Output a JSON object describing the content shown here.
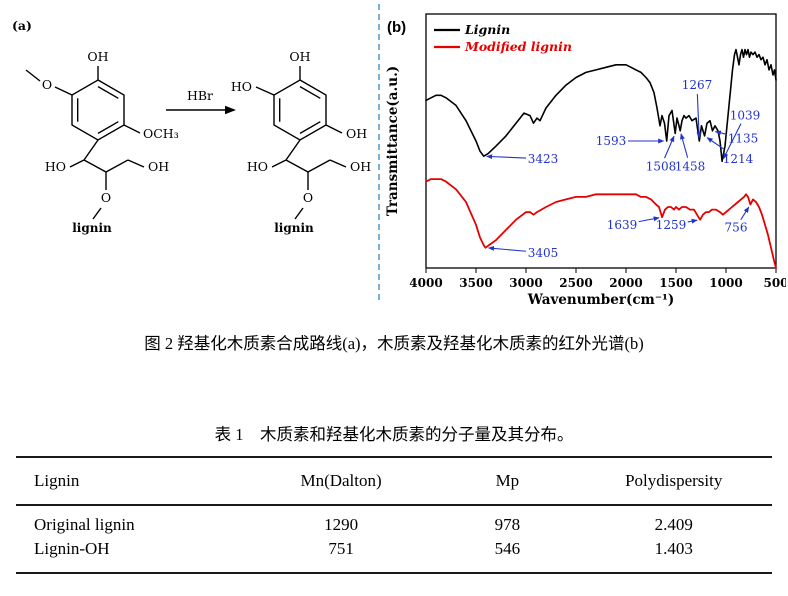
{
  "figure": {
    "panel_a_label": "(a)",
    "panel_b_label": "(b)",
    "reagent": "HBr",
    "scheme": {
      "left": {
        "oh_top": "OH",
        "o_methoxy": "O",
        "och3": "OCH₃",
        "ho_chain": "HO",
        "oh_chain": "OH",
        "o_link": "O",
        "lignin": "lignin"
      },
      "right": {
        "oh_top": "OH",
        "ho_ring": "HO",
        "oh_ring": "OH",
        "ho_chain": "HO",
        "oh_chain": "OH",
        "o_link": "O",
        "lignin": "lignin"
      }
    },
    "caption": "图 2 羟基化木质素合成路线(a)，木质素及羟基化木质素的红外光谱(b)"
  },
  "chart_data": {
    "type": "line",
    "title": "",
    "xlabel": "Wavenumber(cm⁻¹)",
    "ylabel": "Transmittance(a.u.)",
    "xlim": [
      4000,
      500
    ],
    "ylim": [
      0,
      100
    ],
    "x_reversed": true,
    "grid": false,
    "legend_position": "top-left",
    "x_ticks": [
      4000,
      3500,
      3000,
      2500,
      2000,
      1500,
      1000,
      500
    ],
    "annotation_color": "#2233cc",
    "series": [
      {
        "name": "Lignin",
        "color": "#000000",
        "width": 1.6,
        "points": [
          [
            4000,
            66
          ],
          [
            3950,
            67
          ],
          [
            3900,
            68
          ],
          [
            3850,
            68
          ],
          [
            3800,
            67
          ],
          [
            3700,
            64
          ],
          [
            3600,
            58
          ],
          [
            3500,
            50
          ],
          [
            3460,
            46
          ],
          [
            3423,
            44
          ],
          [
            3380,
            45
          ],
          [
            3300,
            48
          ],
          [
            3200,
            52
          ],
          [
            3100,
            57
          ],
          [
            3020,
            61
          ],
          [
            2960,
            60
          ],
          [
            2925,
            57
          ],
          [
            2890,
            59
          ],
          [
            2860,
            58
          ],
          [
            2800,
            63
          ],
          [
            2700,
            68
          ],
          [
            2600,
            72
          ],
          [
            2500,
            75
          ],
          [
            2400,
            77
          ],
          [
            2300,
            78
          ],
          [
            2200,
            79
          ],
          [
            2100,
            80
          ],
          [
            2000,
            80
          ],
          [
            1950,
            79
          ],
          [
            1900,
            78
          ],
          [
            1850,
            77
          ],
          [
            1800,
            75
          ],
          [
            1760,
            73
          ],
          [
            1720,
            69
          ],
          [
            1690,
            63
          ],
          [
            1660,
            56
          ],
          [
            1640,
            60
          ],
          [
            1615,
            57
          ],
          [
            1593,
            50
          ],
          [
            1570,
            60
          ],
          [
            1540,
            62
          ],
          [
            1508,
            53
          ],
          [
            1490,
            59
          ],
          [
            1470,
            56
          ],
          [
            1458,
            54
          ],
          [
            1440,
            58
          ],
          [
            1420,
            60
          ],
          [
            1400,
            59
          ],
          [
            1370,
            60
          ],
          [
            1340,
            58
          ],
          [
            1300,
            59
          ],
          [
            1267,
            50
          ],
          [
            1245,
            56
          ],
          [
            1214,
            52
          ],
          [
            1190,
            57
          ],
          [
            1160,
            58
          ],
          [
            1135,
            54
          ],
          [
            1110,
            56
          ],
          [
            1080,
            54
          ],
          [
            1060,
            50
          ],
          [
            1039,
            42
          ],
          [
            1010,
            48
          ],
          [
            985,
            58
          ],
          [
            960,
            68
          ],
          [
            935,
            78
          ],
          [
            915,
            84
          ],
          [
            900,
            86
          ],
          [
            885,
            83
          ],
          [
            870,
            80
          ],
          [
            855,
            84
          ],
          [
            840,
            86
          ],
          [
            825,
            83
          ],
          [
            810,
            86
          ],
          [
            795,
            84
          ],
          [
            780,
            86
          ],
          [
            765,
            83
          ],
          [
            750,
            85
          ],
          [
            730,
            84
          ],
          [
            710,
            85
          ],
          [
            690,
            83
          ],
          [
            670,
            84
          ],
          [
            650,
            82
          ],
          [
            630,
            83
          ],
          [
            610,
            80
          ],
          [
            590,
            82
          ],
          [
            570,
            78
          ],
          [
            550,
            80
          ],
          [
            530,
            76
          ],
          [
            515,
            78
          ],
          [
            500,
            74
          ]
        ]
      },
      {
        "name": "Modified lignin",
        "color": "#e60000",
        "width": 1.8,
        "points": [
          [
            4000,
            34
          ],
          [
            3950,
            35
          ],
          [
            3900,
            35
          ],
          [
            3850,
            35
          ],
          [
            3800,
            34
          ],
          [
            3700,
            31
          ],
          [
            3600,
            26
          ],
          [
            3500,
            17
          ],
          [
            3460,
            12
          ],
          [
            3423,
            9
          ],
          [
            3405,
            8
          ],
          [
            3370,
            9
          ],
          [
            3300,
            11
          ],
          [
            3200,
            15
          ],
          [
            3100,
            19
          ],
          [
            3000,
            22
          ],
          [
            2960,
            22
          ],
          [
            2925,
            21
          ],
          [
            2890,
            22
          ],
          [
            2800,
            24
          ],
          [
            2700,
            26
          ],
          [
            2600,
            27
          ],
          [
            2500,
            28
          ],
          [
            2400,
            28
          ],
          [
            2300,
            29
          ],
          [
            2200,
            29
          ],
          [
            2100,
            29
          ],
          [
            2000,
            29
          ],
          [
            1900,
            29
          ],
          [
            1850,
            28
          ],
          [
            1800,
            28
          ],
          [
            1750,
            27
          ],
          [
            1700,
            25
          ],
          [
            1670,
            24
          ],
          [
            1639,
            20
          ],
          [
            1610,
            23
          ],
          [
            1580,
            24
          ],
          [
            1550,
            24
          ],
          [
            1520,
            23
          ],
          [
            1500,
            24
          ],
          [
            1470,
            23
          ],
          [
            1440,
            24
          ],
          [
            1400,
            24
          ],
          [
            1360,
            23
          ],
          [
            1320,
            23
          ],
          [
            1290,
            21
          ],
          [
            1259,
            19
          ],
          [
            1230,
            21
          ],
          [
            1200,
            22
          ],
          [
            1170,
            22
          ],
          [
            1140,
            23
          ],
          [
            1100,
            23
          ],
          [
            1060,
            22
          ],
          [
            1030,
            21
          ],
          [
            1000,
            22
          ],
          [
            970,
            23
          ],
          [
            940,
            24
          ],
          [
            910,
            25
          ],
          [
            880,
            26
          ],
          [
            850,
            27
          ],
          [
            820,
            28
          ],
          [
            800,
            29
          ],
          [
            780,
            28
          ],
          [
            756,
            25
          ],
          [
            730,
            27
          ],
          [
            700,
            26
          ],
          [
            670,
            24
          ],
          [
            640,
            21
          ],
          [
            610,
            17
          ],
          [
            580,
            13
          ],
          [
            550,
            8
          ],
          [
            520,
            3
          ],
          [
            500,
            0
          ]
        ]
      }
    ],
    "annotations": [
      {
        "label": "3423",
        "series": "Lignin",
        "point": [
          3423,
          44
        ],
        "text": [
          2830,
          43
        ]
      },
      {
        "label": "1593",
        "series": "Lignin",
        "point": [
          1593,
          50
        ],
        "text": [
          2150,
          50
        ]
      },
      {
        "label": "1508",
        "series": "Lignin",
        "point": [
          1508,
          53
        ],
        "text": [
          1650,
          40
        ]
      },
      {
        "label": "1458",
        "series": "Lignin",
        "point": [
          1458,
          54
        ],
        "text": [
          1360,
          40
        ]
      },
      {
        "label": "1267",
        "series": "Lignin",
        "point": [
          1267,
          50
        ],
        "text": [
          1290,
          72
        ]
      },
      {
        "label": "1214",
        "series": "Lignin",
        "point": [
          1214,
          52
        ],
        "text": [
          880,
          43
        ]
      },
      {
        "label": "1135",
        "series": "Lignin",
        "point": [
          1135,
          54
        ],
        "text": [
          830,
          51
        ]
      },
      {
        "label": "1039",
        "series": "Lignin",
        "point": [
          1039,
          42
        ],
        "text": [
          810,
          60
        ]
      },
      {
        "label": "3405",
        "series": "Modified lignin",
        "point": [
          3405,
          8
        ],
        "text": [
          2830,
          6
        ]
      },
      {
        "label": "1639",
        "series": "Modified lignin",
        "point": [
          1639,
          20
        ],
        "text": [
          2040,
          17
        ]
      },
      {
        "label": "1259",
        "series": "Modified lignin",
        "point": [
          1259,
          19
        ],
        "text": [
          1550,
          17
        ]
      },
      {
        "label": "756",
        "series": "Modified lignin",
        "point": [
          756,
          25
        ],
        "text": [
          900,
          16
        ]
      }
    ]
  },
  "table": {
    "title": "表 1　木质素和羟基化木质素的分子量及其分布。",
    "headers": [
      "Lignin",
      "Mn(Dalton)",
      "Mp",
      "Polydispersity"
    ],
    "rows": [
      [
        "Original lignin",
        "1290",
        "978",
        "2.409"
      ],
      [
        "Lignin-OH",
        "751",
        "546",
        "1.403"
      ]
    ]
  }
}
